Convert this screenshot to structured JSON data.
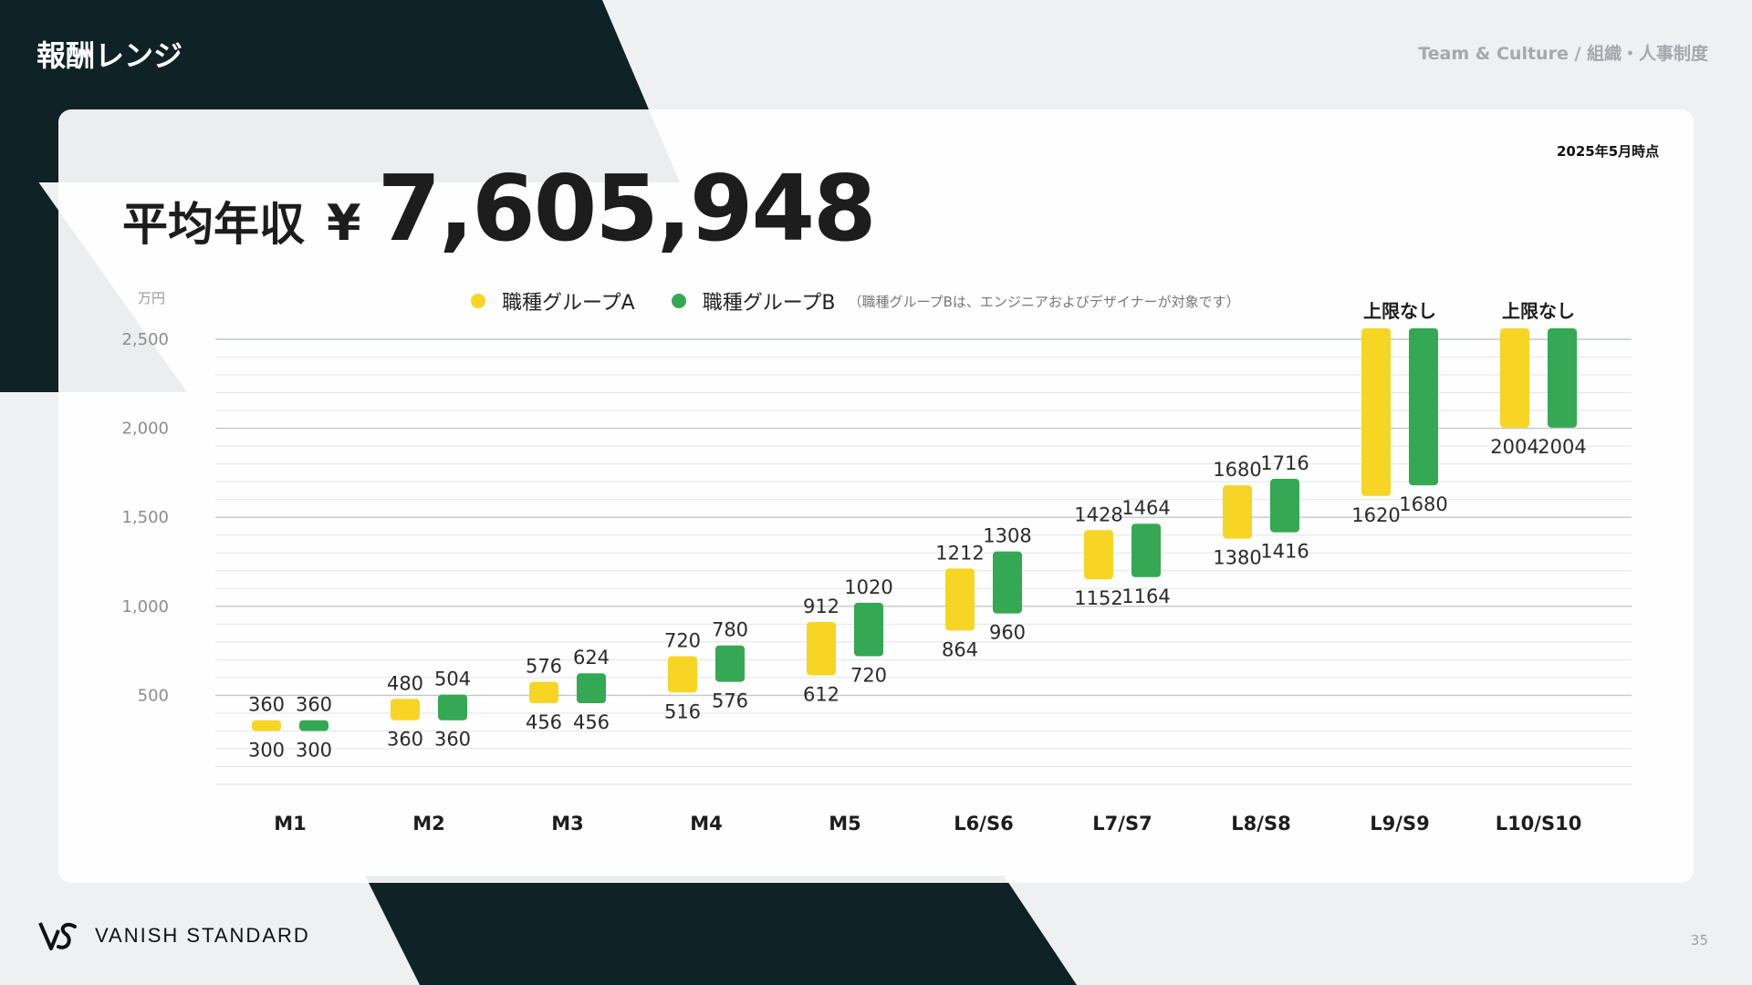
{
  "header": {
    "title": "報酬レンジ",
    "breadcrumb": "Team & Culture / 組織・人事制度"
  },
  "card": {
    "date_note": "2025年5月時点",
    "headline_label": "平均年収",
    "headline_currency": "¥",
    "headline_value": "7,605,948"
  },
  "legend": {
    "group_a": "職種グループA",
    "group_b": "職種グループB",
    "note": "（職種グループBは、エンジニアおよびデザイナーが対象です）"
  },
  "footer": {
    "brand": "VANISH STANDARD",
    "page": "35"
  },
  "colors": {
    "dark": "#0f2226",
    "group_a": "#f7d525",
    "group_b": "#34a853"
  },
  "chart_data": {
    "type": "bar",
    "subtype": "floating-range",
    "unit": "万円",
    "ylim": [
      0,
      2500
    ],
    "yticks": [
      "500",
      "1,000",
      "1,500",
      "2,000",
      "2,500"
    ],
    "ytick_values": [
      500,
      1000,
      1500,
      2000,
      2500
    ],
    "grid": true,
    "categories": [
      "M1",
      "M2",
      "M3",
      "M4",
      "M5",
      "L6/S6",
      "L7/S7",
      "L8/S8",
      "L9/S9",
      "L10/S10"
    ],
    "series": [
      {
        "name": "職種グループA",
        "color": "#f7d525",
        "ranges": [
          [
            300,
            360
          ],
          [
            360,
            480
          ],
          [
            456,
            576
          ],
          [
            516,
            720
          ],
          [
            612,
            912
          ],
          [
            864,
            1212
          ],
          [
            1152,
            1428
          ],
          [
            1380,
            1680
          ],
          [
            1620,
            null
          ],
          [
            2004,
            null
          ]
        ]
      },
      {
        "name": "職種グループB",
        "color": "#34a853",
        "ranges": [
          [
            300,
            360
          ],
          [
            360,
            504
          ],
          [
            456,
            624
          ],
          [
            576,
            780
          ],
          [
            720,
            1020
          ],
          [
            960,
            1308
          ],
          [
            1164,
            1464
          ],
          [
            1416,
            1716
          ],
          [
            1680,
            null
          ],
          [
            2004,
            null
          ]
        ]
      }
    ],
    "no_cap_label": "上限なし"
  }
}
